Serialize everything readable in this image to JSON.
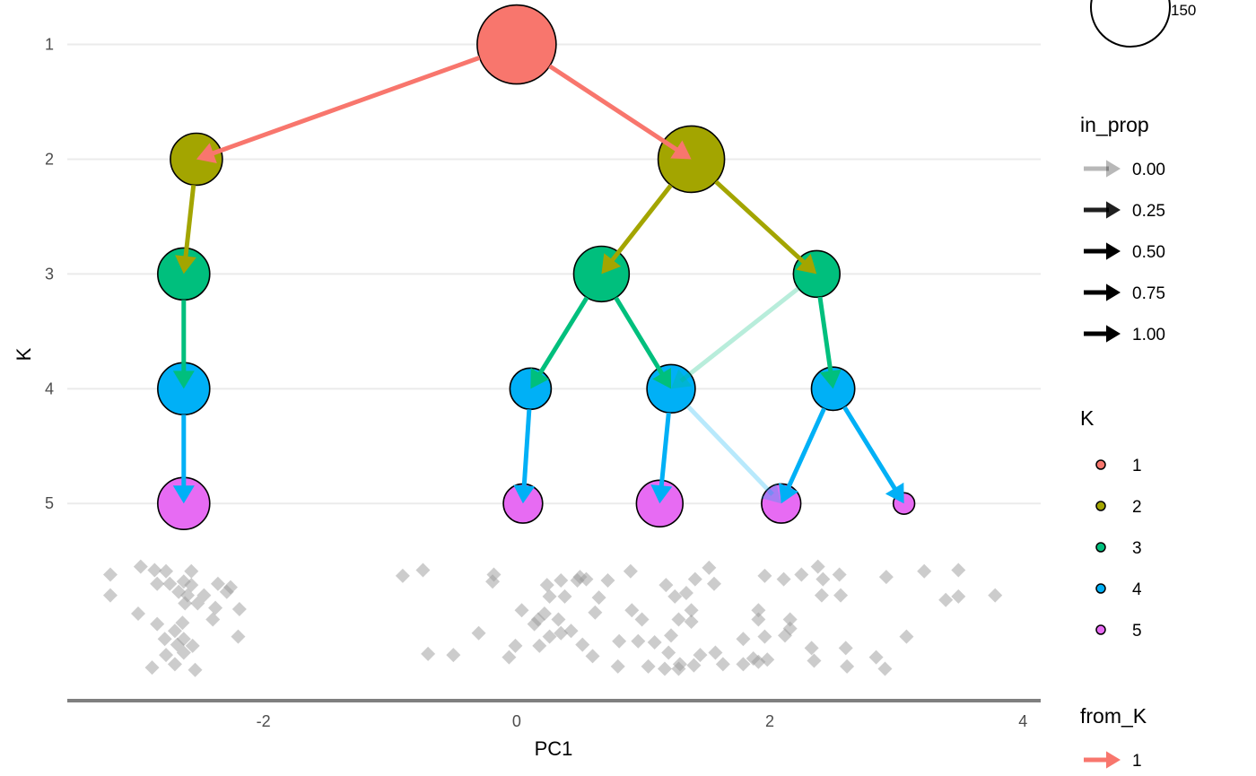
{
  "chart_data": {
    "type": "tree-scatter",
    "xlabel": "PC1",
    "ylabel": "K",
    "xlim": [
      -3.55,
      4.14
    ],
    "ylim": [
      0.73,
      6.71
    ],
    "y_reversed": true,
    "x_ticks": [
      "-2",
      "0",
      "2",
      "4"
    ],
    "x_tick_values": [
      -2,
      0,
      2,
      4
    ],
    "y_ticks": [
      "1",
      "2",
      "3",
      "4",
      "5"
    ],
    "y_tick_values": [
      1,
      2,
      3,
      4,
      5
    ],
    "grid": "horizontal major at K ticks",
    "colors": {
      "1": "#F8766D",
      "2": "#A3A500",
      "3": "#00BF7D",
      "4": "#00B0F6",
      "5": "#E76BF3"
    },
    "nodes": [
      {
        "id": "1_1",
        "K": 1,
        "x": 0.0,
        "size": 150
      },
      {
        "id": "2_1",
        "K": 2,
        "x": -2.53,
        "size": 65
      },
      {
        "id": "2_2",
        "K": 2,
        "x": 1.38,
        "size": 106
      },
      {
        "id": "3_1",
        "K": 3,
        "x": -2.63,
        "size": 65
      },
      {
        "id": "3_2",
        "K": 3,
        "x": 0.67,
        "size": 74
      },
      {
        "id": "3_3",
        "K": 3,
        "x": 2.37,
        "size": 52
      },
      {
        "id": "4_1",
        "K": 4,
        "x": -2.63,
        "size": 65
      },
      {
        "id": "4_2",
        "K": 4,
        "x": 0.11,
        "size": 41
      },
      {
        "id": "4_3",
        "K": 4,
        "x": 1.22,
        "size": 56
      },
      {
        "id": "4_4",
        "K": 4,
        "x": 2.5,
        "size": 45
      },
      {
        "id": "5_1",
        "K": 5,
        "x": -2.63,
        "size": 65
      },
      {
        "id": "5_2",
        "K": 5,
        "x": 0.05,
        "size": 37
      },
      {
        "id": "5_3",
        "K": 5,
        "x": 1.13,
        "size": 52
      },
      {
        "id": "5_4",
        "K": 5,
        "x": 2.09,
        "size": 37
      },
      {
        "id": "5_5",
        "K": 5,
        "x": 3.06,
        "size": 11
      }
    ],
    "edges": [
      {
        "from": "1_1",
        "to": "2_1",
        "from_K": 1,
        "in_prop": 1.0
      },
      {
        "from": "1_1",
        "to": "2_2",
        "from_K": 1,
        "in_prop": 1.0
      },
      {
        "from": "2_1",
        "to": "3_1",
        "from_K": 2,
        "in_prop": 1.0
      },
      {
        "from": "2_2",
        "to": "3_2",
        "from_K": 2,
        "in_prop": 1.0
      },
      {
        "from": "2_2",
        "to": "3_3",
        "from_K": 2,
        "in_prop": 1.0
      },
      {
        "from": "3_1",
        "to": "4_1",
        "from_K": 3,
        "in_prop": 1.0
      },
      {
        "from": "3_2",
        "to": "4_2",
        "from_K": 3,
        "in_prop": 1.0
      },
      {
        "from": "3_2",
        "to": "4_3",
        "from_K": 3,
        "in_prop": 0.9
      },
      {
        "from": "3_3",
        "to": "4_3",
        "from_K": 3,
        "in_prop": 0.0
      },
      {
        "from": "3_3",
        "to": "4_4",
        "from_K": 3,
        "in_prop": 0.95
      },
      {
        "from": "4_1",
        "to": "5_1",
        "from_K": 4,
        "in_prop": 1.0
      },
      {
        "from": "4_2",
        "to": "5_2",
        "from_K": 4,
        "in_prop": 1.0
      },
      {
        "from": "4_3",
        "to": "5_3",
        "from_K": 4,
        "in_prop": 1.0
      },
      {
        "from": "4_3",
        "to": "5_4",
        "from_K": 4,
        "in_prop": 0.0
      },
      {
        "from": "4_4",
        "to": "5_4",
        "from_K": 4,
        "in_prop": 0.9
      },
      {
        "from": "4_4",
        "to": "5_5",
        "from_K": 4,
        "in_prop": 1.0
      }
    ],
    "points": [
      [
        -3.21,
        5.62
      ],
      [
        -3.21,
        5.8
      ],
      [
        -2.97,
        5.55
      ],
      [
        -2.86,
        5.58
      ],
      [
        -2.77,
        5.59
      ],
      [
        -2.57,
        5.59
      ],
      [
        -2.74,
        5.7
      ],
      [
        -2.84,
        5.7
      ],
      [
        -2.63,
        5.68
      ],
      [
        -2.57,
        5.71
      ],
      [
        -2.67,
        5.77
      ],
      [
        -2.6,
        5.8
      ],
      [
        -2.47,
        5.8
      ],
      [
        -2.36,
        5.7
      ],
      [
        -2.26,
        5.73
      ],
      [
        -2.29,
        5.77
      ],
      [
        -2.52,
        5.87
      ],
      [
        -2.62,
        5.87
      ],
      [
        -2.38,
        5.91
      ],
      [
        -2.19,
        5.92
      ],
      [
        -2.99,
        5.96
      ],
      [
        -2.4,
        6.01
      ],
      [
        -2.64,
        6.04
      ],
      [
        -2.84,
        6.05
      ],
      [
        -2.7,
        6.11
      ],
      [
        -2.78,
        6.18
      ],
      [
        -2.63,
        6.18
      ],
      [
        -2.56,
        6.24
      ],
      [
        -2.2,
        6.16
      ],
      [
        -2.77,
        6.32
      ],
      [
        -2.7,
        6.4
      ],
      [
        -2.88,
        6.43
      ],
      [
        -2.54,
        6.45
      ],
      [
        -2.63,
        6.3
      ],
      [
        -2.68,
        6.23
      ],
      [
        -0.9,
        5.63
      ],
      [
        -0.74,
        5.58
      ],
      [
        -0.18,
        5.62
      ],
      [
        -0.19,
        5.68
      ],
      [
        -0.3,
        6.13
      ],
      [
        -0.7,
        6.31
      ],
      [
        -0.5,
        6.32
      ],
      [
        -0.06,
        6.34
      ],
      [
        -0.01,
        6.24
      ],
      [
        0.04,
        5.93
      ],
      [
        0.17,
        6.01
      ],
      [
        0.24,
        5.71
      ],
      [
        0.26,
        5.81
      ],
      [
        0.35,
        5.67
      ],
      [
        0.48,
        5.67
      ],
      [
        0.38,
        5.81
      ],
      [
        0.5,
        5.64
      ],
      [
        0.55,
        5.66
      ],
      [
        0.72,
        5.67
      ],
      [
        0.9,
        5.59
      ],
      [
        0.65,
        5.82
      ],
      [
        0.62,
        5.95
      ],
      [
        0.22,
        5.96
      ],
      [
        0.33,
        6.01
      ],
      [
        0.35,
        6.13
      ],
      [
        0.18,
        6.24
      ],
      [
        0.52,
        6.23
      ],
      [
        0.6,
        6.33
      ],
      [
        0.14,
        6.05
      ],
      [
        0.81,
        6.2
      ],
      [
        0.8,
        6.42
      ],
      [
        0.96,
        6.2
      ],
      [
        0.91,
        5.93
      ],
      [
        0.99,
        6.01
      ],
      [
        1.04,
        6.42
      ],
      [
        1.18,
        5.71
      ],
      [
        1.25,
        5.81
      ],
      [
        1.34,
        5.78
      ],
      [
        1.41,
        5.66
      ],
      [
        1.52,
        5.56
      ],
      [
        1.56,
        5.7
      ],
      [
        1.28,
        6.01
      ],
      [
        1.38,
        6.03
      ],
      [
        1.22,
        6.15
      ],
      [
        1.2,
        6.3
      ],
      [
        1.28,
        6.44
      ],
      [
        1.4,
        6.41
      ],
      [
        1.45,
        6.32
      ],
      [
        1.63,
        6.4
      ],
      [
        1.79,
        6.4
      ],
      [
        1.87,
        6.35
      ],
      [
        1.91,
        6.38
      ],
      [
        1.79,
        6.18
      ],
      [
        1.96,
        6.16
      ],
      [
        1.91,
        6.01
      ],
      [
        1.91,
        5.93
      ],
      [
        2.16,
        6.01
      ],
      [
        2.12,
        6.15
      ],
      [
        2.33,
        6.26
      ],
      [
        2.35,
        6.37
      ],
      [
        1.96,
        5.63
      ],
      [
        2.11,
        5.66
      ],
      [
        2.25,
        5.62
      ],
      [
        2.38,
        5.55
      ],
      [
        2.42,
        5.66
      ],
      [
        2.41,
        5.8
      ],
      [
        2.56,
        5.8
      ],
      [
        2.55,
        5.62
      ],
      [
        2.92,
        5.64
      ],
      [
        3.22,
        5.59
      ],
      [
        3.49,
        5.58
      ],
      [
        3.39,
        5.84
      ],
      [
        3.49,
        5.81
      ],
      [
        3.78,
        5.8
      ],
      [
        3.08,
        6.16
      ],
      [
        2.84,
        6.34
      ],
      [
        2.91,
        6.44
      ],
      [
        2.6,
        6.26
      ],
      [
        2.61,
        6.42
      ],
      [
        2.16,
        6.09
      ],
      [
        1.98,
        6.36
      ],
      [
        1.57,
        6.3
      ],
      [
        1.29,
        6.4
      ],
      [
        1.09,
        6.21
      ],
      [
        1.38,
        5.93
      ],
      [
        1.17,
        6.44
      ],
      [
        0.26,
        6.16
      ],
      [
        0.43,
        6.11
      ]
    ],
    "point_color": "#999999",
    "legend": {
      "position": "right",
      "size": {
        "labels": [
          "150"
        ],
        "values": [
          150
        ]
      },
      "in_prop": {
        "title": "in_prop",
        "labels": [
          "0.00",
          "0.25",
          "0.50",
          "0.75",
          "1.00"
        ],
        "values": [
          0,
          0.25,
          0.5,
          0.75,
          1
        ]
      },
      "K": {
        "title": "K",
        "labels": [
          "1",
          "2",
          "3",
          "4",
          "5"
        ]
      },
      "from_K": {
        "title": "from_K",
        "labels": [
          "1"
        ]
      }
    }
  }
}
